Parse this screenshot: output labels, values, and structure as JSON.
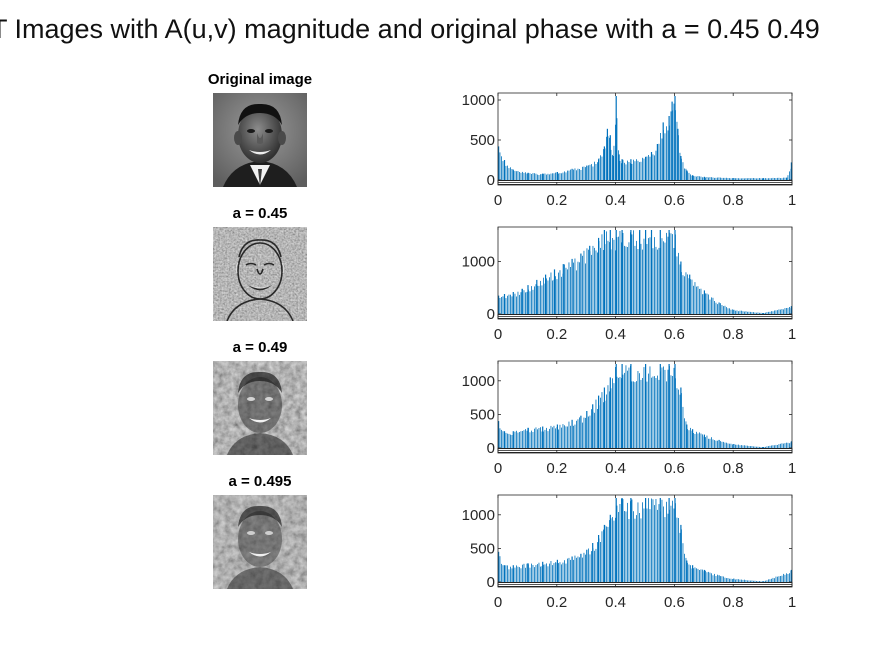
{
  "figure": {
    "title": "T Images with A(u,v) magnitude and original phase with a = 0.45 0.49"
  },
  "panels": [
    {
      "title": "Original image",
      "icon": "face-photo-original"
    },
    {
      "title": "a = 0.45",
      "icon": "face-photo-edge-enhanced"
    },
    {
      "title": "a = 0.49",
      "icon": "face-photo-texture"
    },
    {
      "title": "a = 0.495",
      "icon": "face-photo-texture"
    }
  ],
  "colors": {
    "bar": "#0072BD",
    "axis": "#262626",
    "background": "#ffffff"
  },
  "chart_data": [
    {
      "type": "bar",
      "title": "",
      "xlabel": "",
      "ylabel": "",
      "xlim": [
        0,
        1
      ],
      "ylim": [
        0,
        1050
      ],
      "xticks": [
        0,
        0.2,
        0.4,
        0.6,
        0.8,
        1
      ],
      "xtick_labels": [
        "0",
        "0.2",
        "0.4",
        "0.6",
        "0.8",
        "1"
      ],
      "yticks": [
        0,
        500,
        1000
      ],
      "ytick_labels": [
        "0",
        "500",
        "1000"
      ],
      "grid": false,
      "x": [
        0.0,
        0.02,
        0.05,
        0.1,
        0.15,
        0.2,
        0.25,
        0.3,
        0.34,
        0.36,
        0.37,
        0.38,
        0.39,
        0.4,
        0.41,
        0.42,
        0.45,
        0.5,
        0.52,
        0.54,
        0.56,
        0.58,
        0.59,
        0.6,
        0.61,
        0.62,
        0.64,
        0.66,
        0.7,
        0.8,
        0.9,
        0.98,
        1.0
      ],
      "values": [
        420,
        250,
        130,
        90,
        80,
        100,
        140,
        180,
        260,
        420,
        640,
        560,
        300,
        1050,
        320,
        260,
        260,
        290,
        350,
        450,
        720,
        800,
        980,
        1050,
        640,
        300,
        120,
        60,
        40,
        25,
        25,
        30,
        220
      ]
    },
    {
      "type": "bar",
      "title": "",
      "xlabel": "",
      "ylabel": "",
      "xlim": [
        0,
        1
      ],
      "ylim": [
        0,
        1600
      ],
      "xticks": [
        0,
        0.2,
        0.4,
        0.6,
        0.8,
        1
      ],
      "xtick_labels": [
        "0",
        "0.2",
        "0.4",
        "0.6",
        "0.8",
        "1"
      ],
      "yticks": [
        0,
        1000
      ],
      "ytick_labels": [
        "0",
        "1000"
      ],
      "grid": false,
      "x": [
        0.0,
        0.02,
        0.05,
        0.08,
        0.1,
        0.13,
        0.16,
        0.19,
        0.22,
        0.25,
        0.28,
        0.31,
        0.34,
        0.36,
        0.38,
        0.4,
        0.42,
        0.45,
        0.48,
        0.5,
        0.52,
        0.55,
        0.58,
        0.6,
        0.62,
        0.65,
        0.7,
        0.75,
        0.8,
        0.9,
        1.0
      ],
      "values": [
        350,
        380,
        420,
        480,
        550,
        650,
        750,
        850,
        950,
        1050,
        1150,
        1300,
        1450,
        1600,
        1600,
        1600,
        1600,
        1600,
        1600,
        1600,
        1600,
        1600,
        1600,
        1600,
        1000,
        750,
        450,
        220,
        80,
        20,
        150
      ]
    },
    {
      "type": "bar",
      "title": "",
      "xlabel": "",
      "ylabel": "",
      "xlim": [
        0,
        1
      ],
      "ylim": [
        0,
        1250
      ],
      "xticks": [
        0,
        0.2,
        0.4,
        0.6,
        0.8,
        1
      ],
      "xtick_labels": [
        "0",
        "0.2",
        "0.4",
        "0.6",
        "0.8",
        "1"
      ],
      "yticks": [
        0,
        500,
        1000
      ],
      "ytick_labels": [
        "0",
        "500",
        "1000"
      ],
      "grid": false,
      "x": [
        0.0,
        0.02,
        0.05,
        0.1,
        0.15,
        0.2,
        0.25,
        0.28,
        0.3,
        0.32,
        0.34,
        0.36,
        0.38,
        0.4,
        0.42,
        0.45,
        0.5,
        0.55,
        0.58,
        0.6,
        0.62,
        0.64,
        0.66,
        0.7,
        0.75,
        0.8,
        0.9,
        1.0
      ],
      "values": [
        400,
        250,
        250,
        300,
        320,
        350,
        420,
        480,
        550,
        650,
        780,
        900,
        1050,
        1250,
        1250,
        1250,
        1250,
        1250,
        1250,
        1250,
        900,
        350,
        280,
        200,
        120,
        60,
        15,
        100
      ]
    },
    {
      "type": "bar",
      "title": "",
      "xlabel": "",
      "ylabel": "",
      "xlim": [
        0,
        1
      ],
      "ylim": [
        0,
        1250
      ],
      "xticks": [
        0,
        0.2,
        0.4,
        0.6,
        0.8,
        1
      ],
      "xtick_labels": [
        "0",
        "0.2",
        "0.4",
        "0.6",
        "0.8",
        "1"
      ],
      "yticks": [
        0,
        500,
        1000
      ],
      "ytick_labels": [
        "0",
        "500",
        "1000"
      ],
      "grid": false,
      "x": [
        0.0,
        0.02,
        0.05,
        0.1,
        0.15,
        0.2,
        0.25,
        0.28,
        0.3,
        0.32,
        0.34,
        0.36,
        0.38,
        0.4,
        0.42,
        0.45,
        0.5,
        0.55,
        0.58,
        0.6,
        0.62,
        0.64,
        0.66,
        0.7,
        0.75,
        0.8,
        0.9,
        1.0
      ],
      "values": [
        450,
        250,
        250,
        280,
        300,
        330,
        380,
        420,
        480,
        580,
        700,
        850,
        1000,
        1250,
        1250,
        1250,
        1250,
        1250,
        1250,
        1250,
        850,
        320,
        250,
        180,
        100,
        50,
        10,
        180
      ]
    }
  ]
}
